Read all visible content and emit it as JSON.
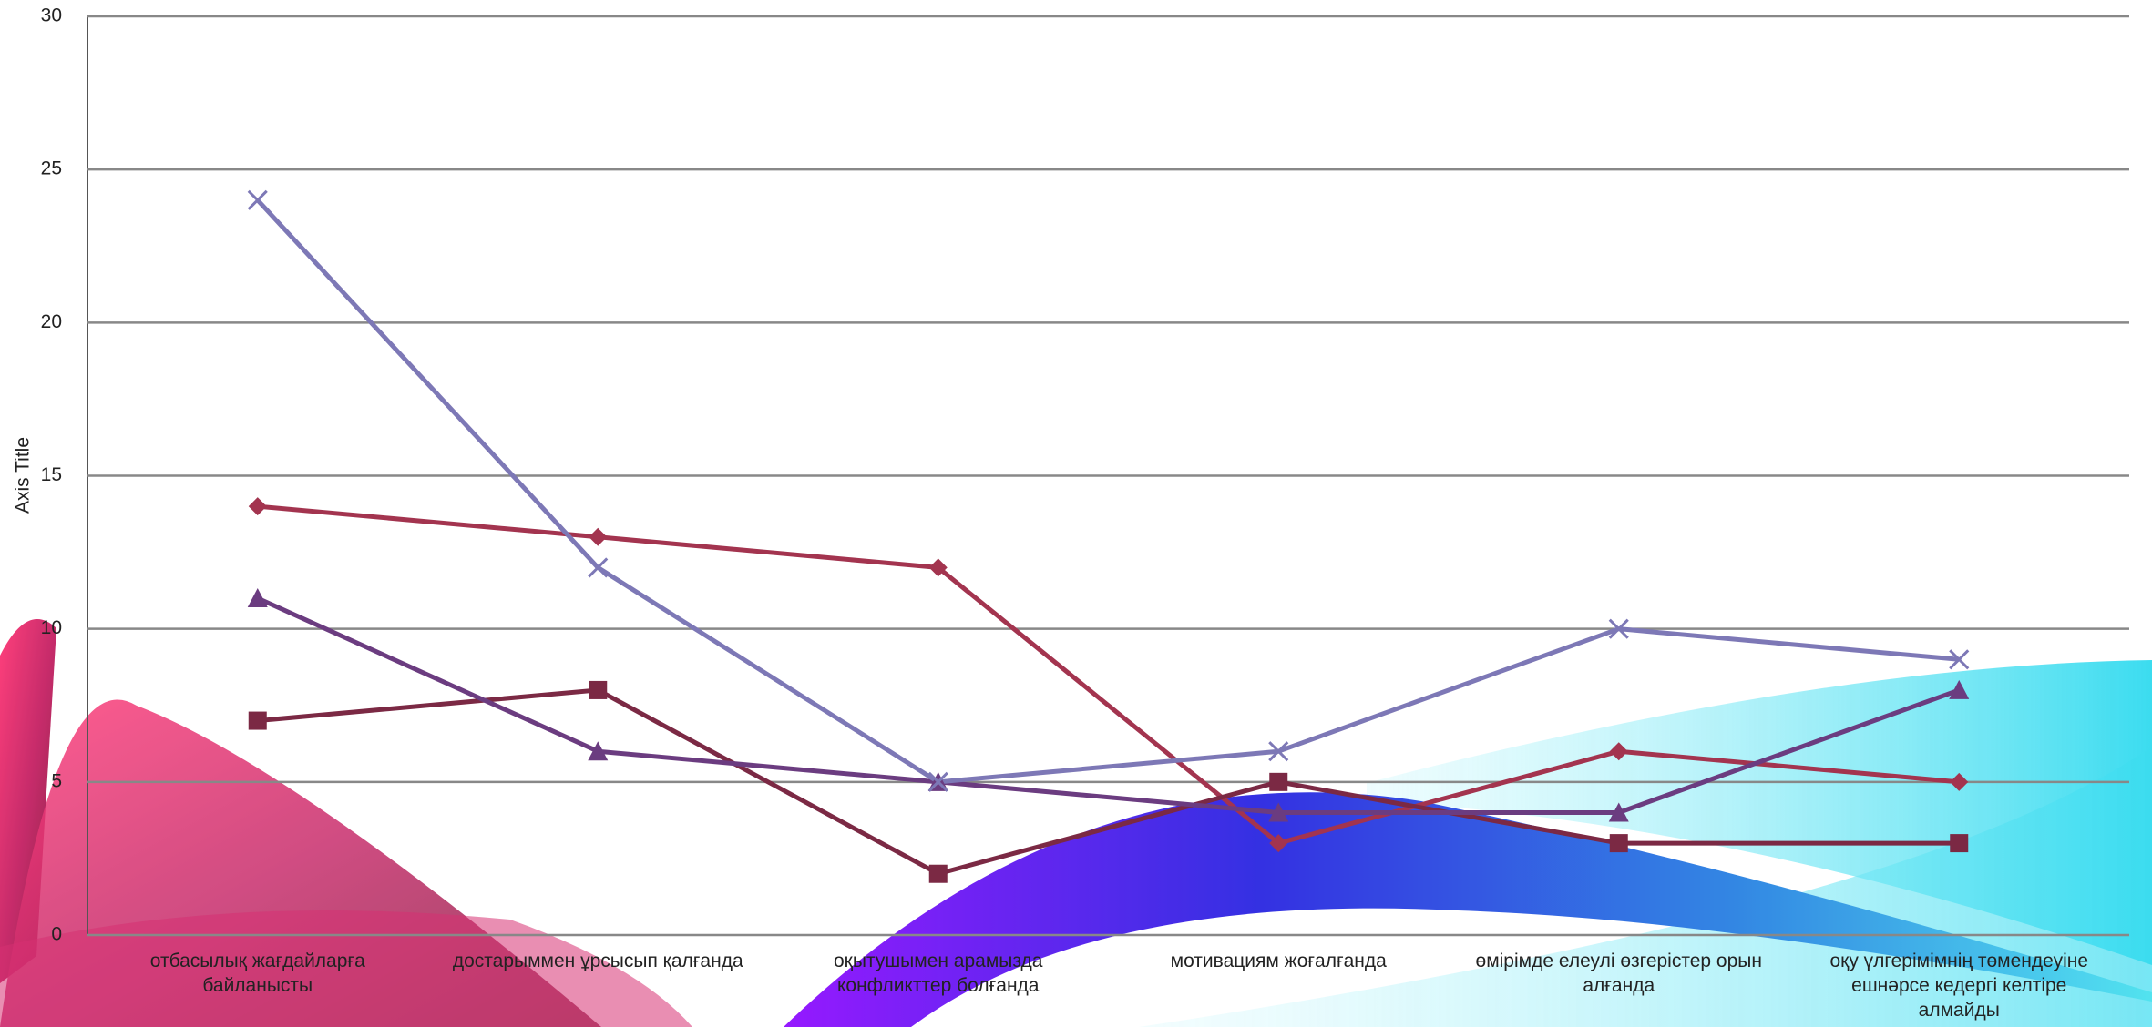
{
  "chart_data": {
    "type": "line",
    "y_label": "Axis Title",
    "categories": [
      "отбасылық жағдайларға байланысты",
      "достарыммен ұрсысып қалғанда",
      "оқытушымен арамызда конфликттер болғанда",
      "мотивациям жоғалғанда",
      "өмірімде елеулі өзгерістер орын алғанда",
      "оқу үлгерімімнің төмендеуіне ешнәрсе кедергі келтіре алмайды"
    ],
    "series": [
      {
        "color": "#a3344f",
        "marker": "diamond",
        "values": [
          14,
          13,
          12,
          3,
          6,
          5
        ]
      },
      {
        "color": "#7b2944",
        "marker": "square",
        "values": [
          7,
          8,
          2,
          5,
          3,
          3
        ]
      },
      {
        "color": "#6b3c80",
        "marker": "triangle",
        "values": [
          11,
          6,
          5,
          4,
          4,
          8
        ]
      },
      {
        "color": "#7d78b6",
        "marker": "x",
        "values": [
          24,
          12,
          5,
          6,
          10,
          9
        ]
      }
    ],
    "ylim": [
      0,
      30
    ],
    "yticks": [
      0,
      5,
      10,
      15,
      20,
      25,
      30
    ],
    "grid": true
  }
}
